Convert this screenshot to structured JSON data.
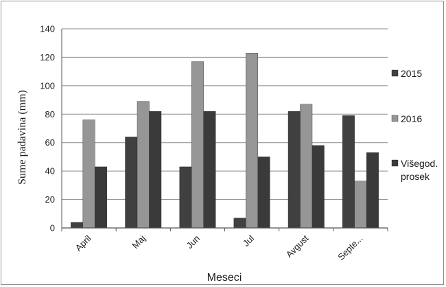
{
  "chart_data": {
    "type": "bar",
    "title": "",
    "xlabel": "Meseci",
    "ylabel": "Sume padavina (mm)",
    "ylim": [
      0,
      140
    ],
    "yticks": [
      0,
      20,
      40,
      60,
      80,
      100,
      120,
      140
    ],
    "grid": true,
    "legend_position": "right",
    "categories": [
      "April",
      "Maj",
      "Jun",
      "Jul",
      "Avgust",
      "Septe..."
    ],
    "series": [
      {
        "name": "2015",
        "color": "#404040",
        "values": [
          4,
          64,
          43,
          7,
          82,
          79
        ]
      },
      {
        "name": "2016",
        "color": "#969696",
        "values": [
          76,
          89,
          117,
          123,
          87,
          33
        ]
      },
      {
        "name": "Višegod. prosek",
        "color": "#3a3a3a",
        "values": [
          43,
          82,
          82,
          50,
          58,
          53
        ]
      }
    ],
    "legend_labels": [
      [
        "2015"
      ],
      [
        "2016"
      ],
      [
        "Višegod.",
        "prosek"
      ]
    ]
  }
}
